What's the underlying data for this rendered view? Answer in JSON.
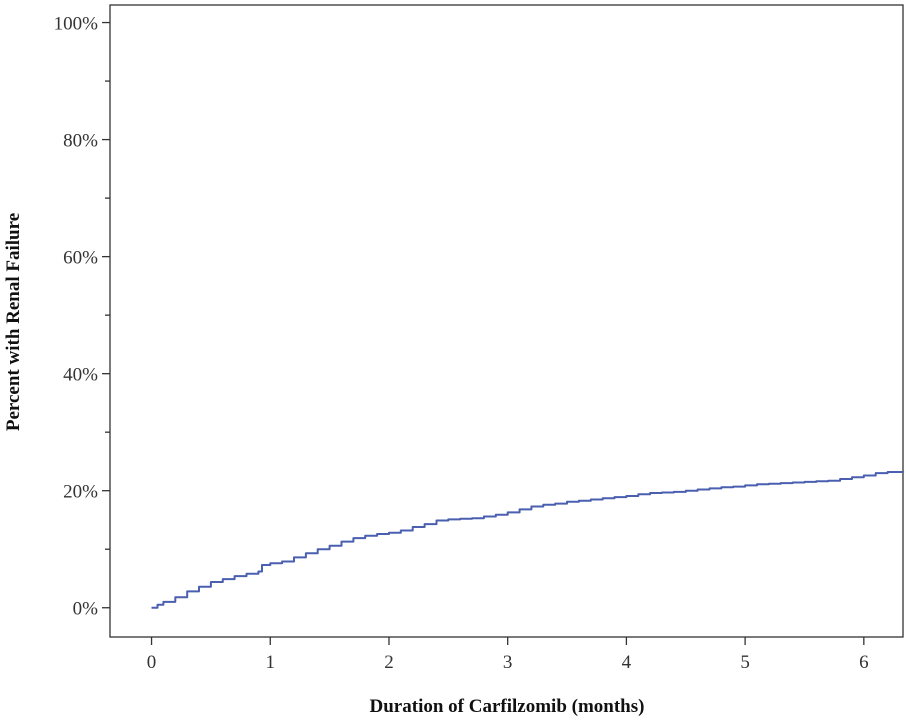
{
  "chart_data": {
    "type": "line",
    "title": "",
    "xlabel": "Duration of Carfilzomib (months)",
    "ylabel": "Percent with Renal Failure",
    "xlim": [
      -0.35,
      6.33
    ],
    "ylim": [
      -5,
      103
    ],
    "x_ticks": [
      0,
      1,
      2,
      3,
      4,
      5,
      6
    ],
    "x_tick_labels": [
      "0",
      "1",
      "2",
      "3",
      "4",
      "5",
      "6"
    ],
    "y_ticks": [
      0,
      20,
      40,
      60,
      80,
      100
    ],
    "y_tick_labels": [
      "0%",
      "20%",
      "40%",
      "60%",
      "80%",
      "100%"
    ],
    "y_minor_ticks": [
      10,
      30,
      50,
      70,
      90
    ],
    "grid": false,
    "legend": "none",
    "line_color": "#4a5fb0",
    "series": [
      {
        "x": [
          0,
          0.05,
          0.1,
          0.2,
          0.3,
          0.4,
          0.5,
          0.6,
          0.7,
          0.8,
          0.9,
          0.93,
          1.0,
          1.1,
          1.2,
          1.3,
          1.4,
          1.5,
          1.6,
          1.7,
          1.8,
          1.9,
          2.0,
          2.1,
          2.2,
          2.3,
          2.4,
          2.5,
          2.6,
          2.7,
          2.8,
          2.9,
          3.0,
          3.1,
          3.2,
          3.3,
          3.4,
          3.5,
          3.6,
          3.7,
          3.8,
          3.9,
          4.0,
          4.1,
          4.2,
          4.3,
          4.4,
          4.5,
          4.6,
          4.7,
          4.8,
          4.9,
          5.0,
          5.1,
          5.2,
          5.3,
          5.4,
          5.5,
          5.6,
          5.7,
          5.8,
          5.9,
          6.0,
          6.1,
          6.2,
          6.33
        ],
        "y": [
          0,
          0.5,
          1,
          1.8,
          2.8,
          3.6,
          4.4,
          4.9,
          5.4,
          5.8,
          6.2,
          7.3,
          7.6,
          7.9,
          8.6,
          9.3,
          10.0,
          10.6,
          11.3,
          11.9,
          12.3,
          12.6,
          12.8,
          13.2,
          13.8,
          14.3,
          14.9,
          15.1,
          15.2,
          15.3,
          15.6,
          15.9,
          16.3,
          16.8,
          17.3,
          17.6,
          17.8,
          18.1,
          18.3,
          18.5,
          18.7,
          18.9,
          19.1,
          19.4,
          19.6,
          19.7,
          19.8,
          20.0,
          20.2,
          20.4,
          20.6,
          20.7,
          20.9,
          21.1,
          21.2,
          21.3,
          21.4,
          21.5,
          21.6,
          21.7,
          22.0,
          22.3,
          22.6,
          23.0,
          23.2,
          23.3
        ]
      }
    ]
  }
}
